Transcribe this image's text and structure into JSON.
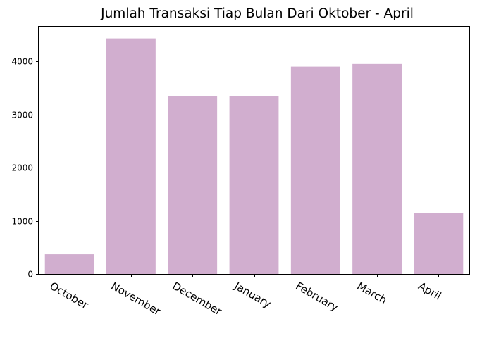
{
  "chart_data": {
    "type": "bar",
    "title": "Jumlah Transaksi Tiap Bulan Dari Oktober - April",
    "xlabel": "",
    "ylabel": "",
    "categories": [
      "October",
      "November",
      "December",
      "January",
      "February",
      "March",
      "April"
    ],
    "values": [
      370,
      4430,
      3340,
      3350,
      3900,
      3950,
      1150
    ],
    "ylim": [
      0,
      4650
    ],
    "yticks": [
      0,
      1000,
      2000,
      3000,
      4000
    ],
    "ytick_labels": [
      "0",
      "1000",
      "2000",
      "3000",
      "4000"
    ],
    "bar_color": "#d1aecf",
    "grid": false,
    "legend": "none"
  }
}
